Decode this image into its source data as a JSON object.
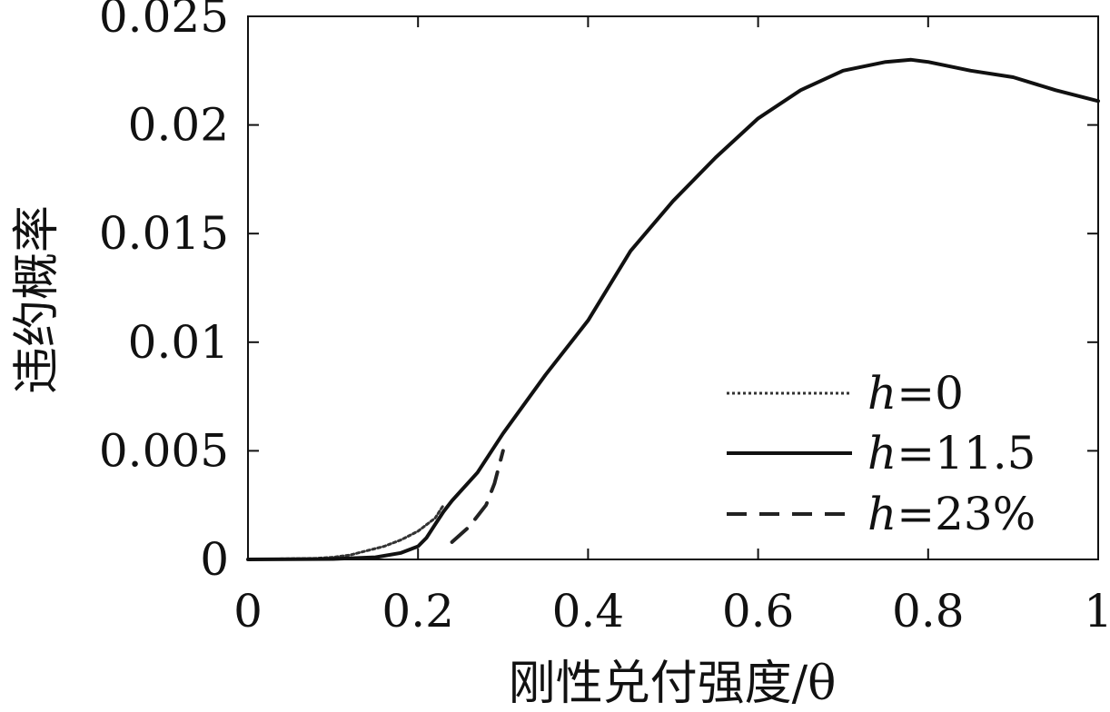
{
  "chart_data": {
    "type": "line",
    "title": "",
    "xlabel": "刚性兑付强度/θ",
    "ylabel": "违约概率",
    "xlim": [
      0,
      1
    ],
    "ylim": [
      0,
      0.025
    ],
    "x_ticks": [
      "0",
      "0.2",
      "0.4",
      "0.6",
      "0.8",
      "1"
    ],
    "y_ticks": [
      "0",
      "0.005",
      "0.01",
      "0.015",
      "0.02",
      "0.025"
    ],
    "grid": false,
    "legend_position": "lower-right",
    "series": [
      {
        "name": "h=0",
        "legend_italic": "h",
        "legend_rest": "=0",
        "style": "dotted",
        "color": "#333333",
        "x": [
          0,
          0.08,
          0.1,
          0.12,
          0.14,
          0.16,
          0.18,
          0.2,
          0.22,
          0.23
        ],
        "y": [
          0,
          5e-05,
          0.0001,
          0.0002,
          0.0004,
          0.0006,
          0.0009,
          0.0013,
          0.0019,
          0.0025
        ]
      },
      {
        "name": "h=11.5",
        "legend_italic": "h",
        "legend_rest": "=11.5",
        "style": "solid",
        "color": "#111111",
        "x": [
          0,
          0.1,
          0.15,
          0.18,
          0.2,
          0.21,
          0.22,
          0.23,
          0.24,
          0.27,
          0.3,
          0.35,
          0.4,
          0.45,
          0.5,
          0.55,
          0.6,
          0.65,
          0.7,
          0.75,
          0.78,
          0.8,
          0.85,
          0.9,
          0.95,
          1.0
        ],
        "y": [
          0,
          2e-05,
          0.0001,
          0.0003,
          0.0006,
          0.001,
          0.0016,
          0.0022,
          0.0027,
          0.004,
          0.0058,
          0.0085,
          0.011,
          0.0142,
          0.0165,
          0.0185,
          0.0203,
          0.0216,
          0.0225,
          0.0229,
          0.023,
          0.0229,
          0.0225,
          0.0222,
          0.0216,
          0.0211
        ]
      },
      {
        "name": "h=23%",
        "legend_italic": "h",
        "legend_rest": "=23%",
        "style": "dashed",
        "color": "#222222",
        "x": [
          0.24,
          0.26,
          0.28,
          0.29,
          0.3
        ],
        "y": [
          0.0008,
          0.0015,
          0.0025,
          0.0035,
          0.005
        ]
      }
    ]
  }
}
